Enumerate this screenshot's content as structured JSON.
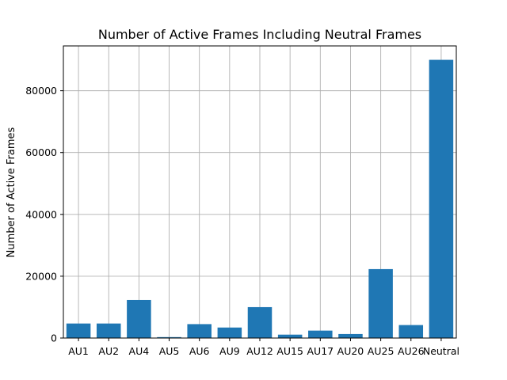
{
  "chart_data": {
    "type": "bar",
    "title": "Number of Active Frames Including Neutral Frames",
    "xlabel": "",
    "ylabel": "Number of Active Frames",
    "categories": [
      "AU1",
      "AU2",
      "AU4",
      "AU5",
      "AU6",
      "AU9",
      "AU12",
      "AU15",
      "AU17",
      "AU20",
      "AU25",
      "AU26",
      "Neutral"
    ],
    "values": [
      4700,
      4700,
      12300,
      300,
      4500,
      3400,
      10000,
      1100,
      2400,
      1300,
      22300,
      4200,
      90000
    ],
    "ylim": [
      0,
      94500
    ],
    "yticks": [
      0,
      20000,
      40000,
      60000,
      80000
    ],
    "grid": true,
    "bar_color": "#1f77b4"
  }
}
